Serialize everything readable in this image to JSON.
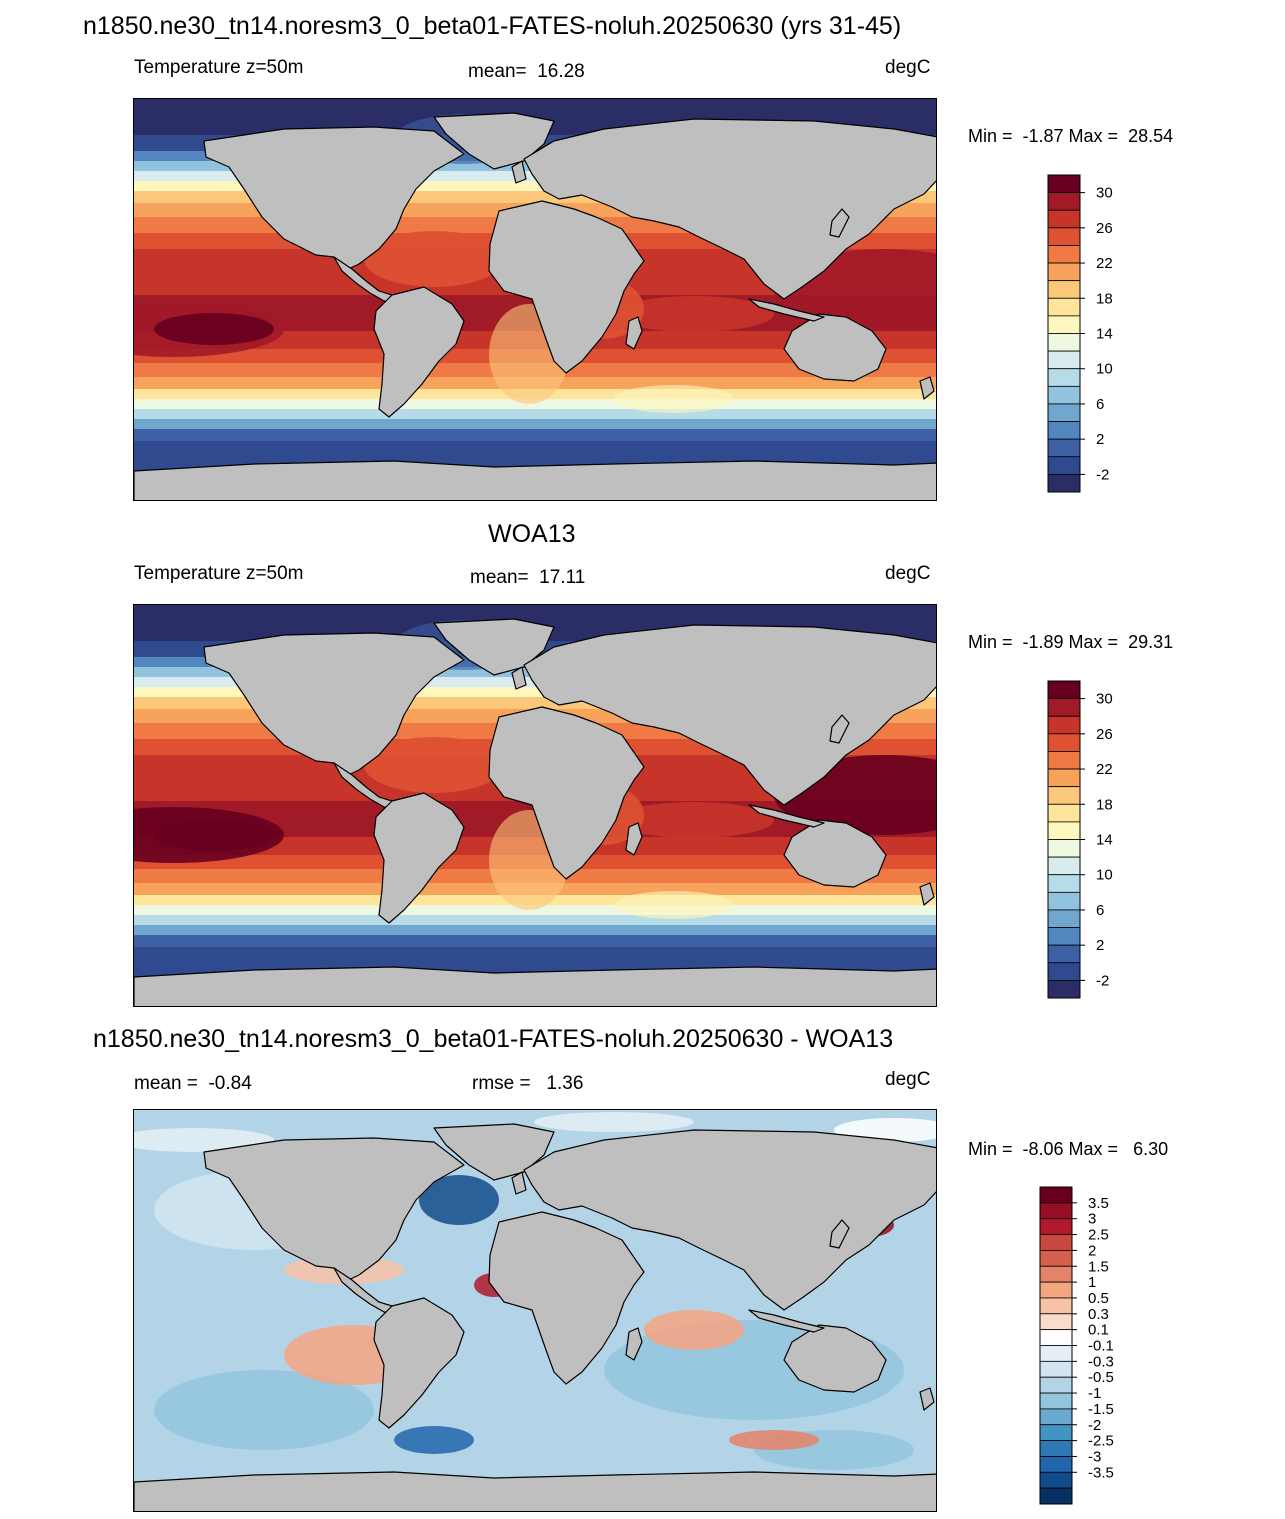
{
  "figure": {
    "title": "n1850.ne30_tn14.noresm3_0_beta01-FATES-noluh.20250630 (yrs 31-45)",
    "colors": {
      "land": "#bfbfbf",
      "coastline": "#000000"
    }
  },
  "panels": [
    {
      "id": "model",
      "left_label": "Temperature z=50m",
      "center_label": "mean=  16.28",
      "right_label": "degC",
      "minmax": "Min =  -1.87 Max =  28.54",
      "colorbar": {
        "labels": [
          "30",
          "26",
          "22",
          "18",
          "14",
          "10",
          "6",
          "2",
          "-2"
        ],
        "colors": [
          "#67001f",
          "#a11a28",
          "#c6342a",
          "#de5233",
          "#ef7a45",
          "#f7a35c",
          "#fbc77a",
          "#fde59b",
          "#fdf6bd",
          "#eef7e0",
          "#d8ecef",
          "#b6dbe9",
          "#92c3de",
          "#6fa7cf",
          "#5186bf",
          "#3d5fa3",
          "#2f4a8f",
          "#2a2d66"
        ]
      }
    },
    {
      "id": "obs",
      "heading": "WOA13",
      "left_label": "Temperature z=50m",
      "center_label": "mean=  17.11",
      "right_label": "degC",
      "minmax": "Min =  -1.89 Max =  29.31",
      "colorbar": {
        "labels": [
          "30",
          "26",
          "22",
          "18",
          "14",
          "10",
          "6",
          "2",
          "-2"
        ],
        "colors": [
          "#67001f",
          "#a11a28",
          "#c6342a",
          "#de5233",
          "#ef7a45",
          "#f7a35c",
          "#fbc77a",
          "#fde59b",
          "#fdf6bd",
          "#eef7e0",
          "#d8ecef",
          "#b6dbe9",
          "#92c3de",
          "#6fa7cf",
          "#5186bf",
          "#3d5fa3",
          "#2f4a8f",
          "#2a2d66"
        ]
      }
    },
    {
      "id": "diff",
      "heading": "n1850.ne30_tn14.noresm3_0_beta01-FATES-noluh.20250630 - WOA13",
      "left_label": "mean =  -0.84",
      "center_label": "rmse =   1.36",
      "right_label": "degC",
      "minmax": "Min =  -8.06 Max =   6.30",
      "colorbar": {
        "labels": [
          "3.5",
          "3",
          "2.5",
          "2",
          "1.5",
          "1",
          "0.5",
          "0.3",
          "0.1",
          "-0.1",
          "-0.3",
          "-0.5",
          "-1",
          "-1.5",
          "-2",
          "-2.5",
          "-3",
          "-3.5"
        ],
        "colors": [
          "#67001f",
          "#940e26",
          "#b2182b",
          "#c94741",
          "#d6604d",
          "#e58368",
          "#f4a582",
          "#f8c2a6",
          "#fbdccb",
          "#ffffff",
          "#e4eff5",
          "#d1e5f0",
          "#b3d4e7",
          "#92c5de",
          "#6aa9cf",
          "#4393c3",
          "#2f78b5",
          "#2166ac",
          "#134c8b",
          "#053061"
        ]
      }
    }
  ]
}
